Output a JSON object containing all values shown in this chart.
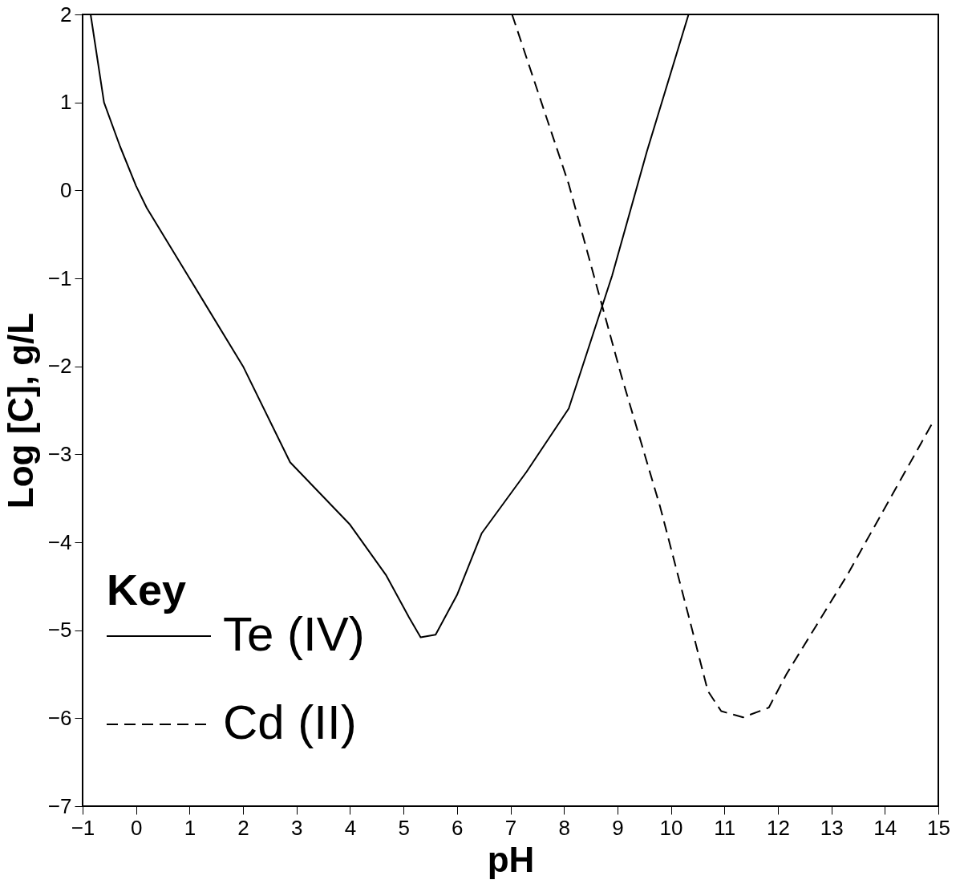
{
  "chart_data": {
    "type": "line",
    "xlabel": "pH",
    "ylabel": "Log [C], g/L",
    "legend_title": "Key",
    "legend": "bottom left",
    "grid": false,
    "marker": "none",
    "xlim": [
      -1,
      15
    ],
    "xticks": [
      -1,
      0,
      1,
      2,
      3,
      4,
      5,
      6,
      7,
      8,
      9,
      10,
      11,
      12,
      13,
      14,
      15
    ],
    "ylim": [
      -7,
      2
    ],
    "yticks": [
      -7,
      -6,
      -5,
      -4,
      -3,
      -2,
      -1,
      0,
      1,
      2
    ],
    "series": [
      {
        "name": "Te (IV)",
        "color": "#000000",
        "line_style": "solid",
        "x": [
          -0.85,
          -0.6,
          -0.3,
          0,
          0.2,
          1,
          2,
          2.88,
          4,
          4.67,
          5.1,
          5.32,
          5.6,
          6,
          6.46,
          7.3,
          8.09,
          8.9,
          9.55,
          10.33
        ],
        "values": [
          2,
          1,
          0.5,
          0.05,
          -0.2,
          -1.0,
          -2.0,
          -3.09,
          -3.8,
          -4.37,
          -4.85,
          -5.08,
          -5.05,
          -4.6,
          -3.9,
          -3.2,
          -2.48,
          -0.97,
          0.44,
          2
        ]
      },
      {
        "name": "Cd (II)",
        "color": "#000000",
        "line_style": "dashed",
        "x": [
          7.03,
          8.09,
          9.07,
          9.8,
          10.37,
          10.69,
          10.94,
          11.35,
          11.83,
          12.16,
          13.3,
          14.93
        ],
        "values": [
          2,
          0.07,
          -2.1,
          -3.6,
          -4.93,
          -5.69,
          -5.92,
          -5.99,
          -5.88,
          -5.5,
          -4.37,
          -2.6
        ]
      }
    ]
  }
}
